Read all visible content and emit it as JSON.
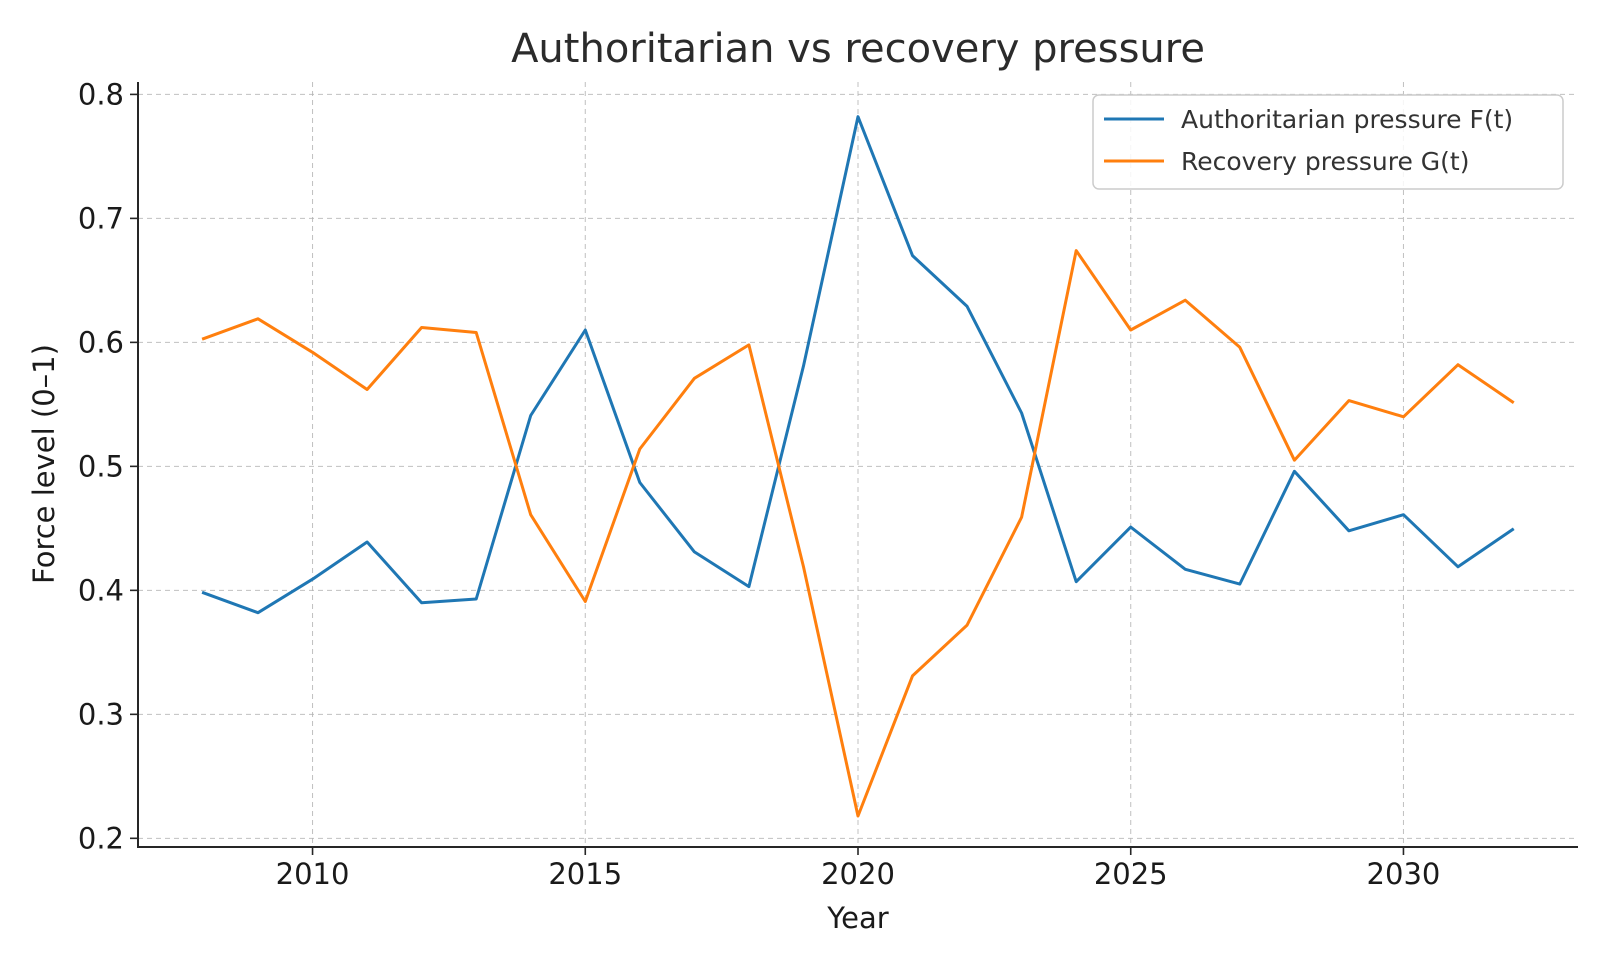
{
  "chart_data": {
    "type": "line",
    "title": "Authoritarian vs recovery pressure",
    "xlabel": "Year",
    "ylabel": "Force level (0–1)",
    "x": [
      2008,
      2009,
      2010,
      2011,
      2012,
      2013,
      2014,
      2015,
      2016,
      2017,
      2018,
      2019,
      2020,
      2021,
      2022,
      2023,
      2024,
      2025,
      2026,
      2027,
      2028,
      2029,
      2030,
      2031,
      2032
    ],
    "xlim": [
      2006.8,
      2033.2
    ],
    "ylim": [
      0.193,
      0.81
    ],
    "xticks": [
      2010,
      2015,
      2020,
      2025,
      2030
    ],
    "xtick_labels": [
      "2010",
      "2015",
      "2020",
      "2025",
      "2030"
    ],
    "yticks": [
      0.2,
      0.3,
      0.4,
      0.5,
      0.6,
      0.7,
      0.8
    ],
    "ytick_labels": [
      "0.2",
      "0.3",
      "0.4",
      "0.5",
      "0.6",
      "0.7",
      "0.8"
    ],
    "grid": true,
    "legend_position": "top-right",
    "series": [
      {
        "name": "Authoritarian pressure F(t)",
        "color": "#1f77b4",
        "values": [
          0.398,
          0.382,
          0.409,
          0.439,
          0.39,
          0.393,
          0.541,
          0.61,
          0.487,
          0.431,
          0.403,
          0.581,
          0.782,
          0.67,
          0.629,
          0.543,
          0.407,
          0.451,
          0.417,
          0.405,
          0.496,
          0.448,
          0.461,
          0.419,
          0.449
        ]
      },
      {
        "name": "Recovery pressure G(t)",
        "color": "#ff7f0e",
        "values": [
          0.603,
          0.619,
          0.592,
          0.562,
          0.612,
          0.608,
          0.461,
          0.391,
          0.514,
          0.571,
          0.598,
          0.419,
          0.218,
          0.331,
          0.372,
          0.459,
          0.674,
          0.61,
          0.634,
          0.596,
          0.505,
          0.553,
          0.54,
          0.582,
          0.552
        ]
      }
    ]
  }
}
